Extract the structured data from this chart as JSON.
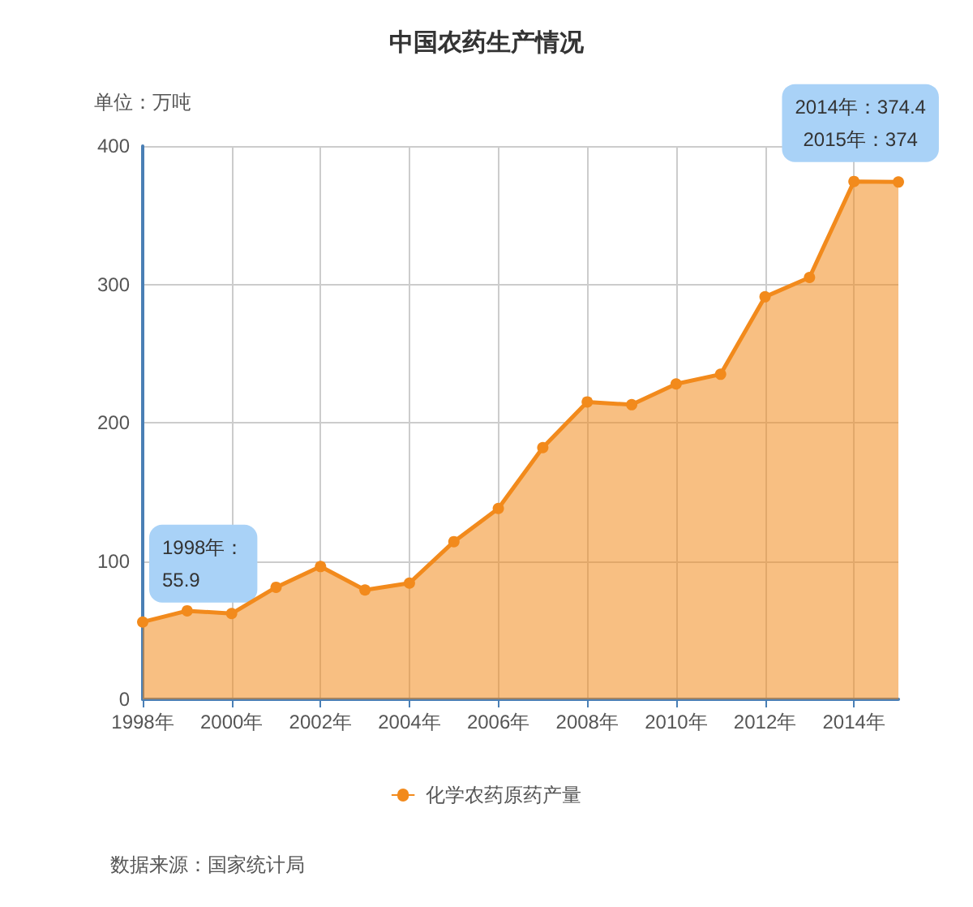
{
  "chart_data": {
    "type": "area",
    "title": "中国农药生产情况",
    "ylabel": "单位：万吨",
    "x": [
      1998,
      1999,
      2000,
      2001,
      2002,
      2003,
      2004,
      2005,
      2006,
      2007,
      2008,
      2009,
      2010,
      2011,
      2012,
      2013,
      2014,
      2015
    ],
    "series": [
      {
        "name": "化学农药原药产量",
        "color": "#f28a1c",
        "values": [
          55.9,
          64,
          62,
          81,
          96,
          79,
          84,
          114,
          138,
          182,
          215,
          213,
          228,
          235,
          291,
          305,
          374.4,
          374
        ]
      }
    ],
    "xlim": [
      1998,
      2015
    ],
    "xticks": [
      {
        "value": 1998,
        "label": "1998年"
      },
      {
        "value": 2000,
        "label": "2000年"
      },
      {
        "value": 2002,
        "label": "2002年"
      },
      {
        "value": 2004,
        "label": "2004年"
      },
      {
        "value": 2006,
        "label": "2006年"
      },
      {
        "value": 2008,
        "label": "2008年"
      },
      {
        "value": 2010,
        "label": "2010年"
      },
      {
        "value": 2012,
        "label": "2012年"
      },
      {
        "value": 2014,
        "label": "2014年"
      }
    ],
    "ylim": [
      0,
      400
    ],
    "yticks": [
      0,
      100,
      200,
      300,
      400
    ],
    "grid": true,
    "legend": "bottom",
    "marker": "circle",
    "line_style": "solid",
    "annotations": [
      {
        "text": "1998年：\n55.9",
        "x": 1998,
        "y": 55.9
      },
      {
        "text": "2014年：374.4\n2015年：374",
        "x": 2014,
        "y": 374.4
      },
      "数据来源：国家统计局"
    ]
  }
}
